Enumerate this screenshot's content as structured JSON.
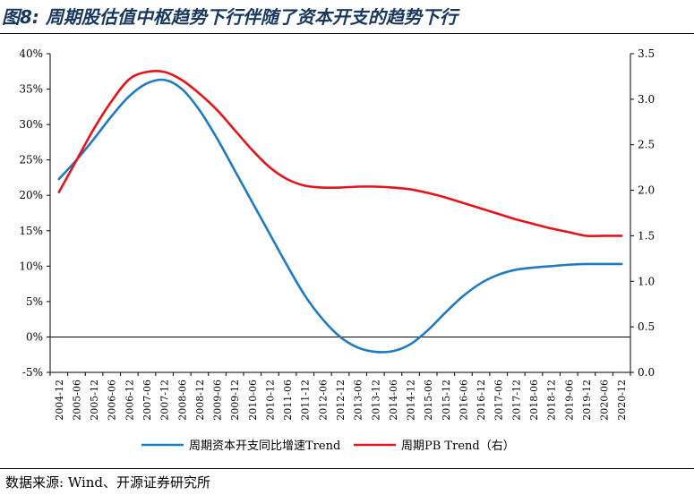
{
  "title": "图8:  周期股估值中枢趋势下行伴随了资本开支的趋势下行",
  "source": "数据来源:  Wind、开源证券研究所",
  "colors": {
    "title": "#17375e",
    "capex_series": "#1f7bc1",
    "pb_series": "#e3141c",
    "axis": "#000000"
  },
  "chart_data": {
    "type": "line",
    "title": "",
    "x": [
      "2004-12",
      "2005-06",
      "2005-12",
      "2006-06",
      "2006-12",
      "2007-06",
      "2007-12",
      "2008-06",
      "2008-12",
      "2009-06",
      "2009-12",
      "2010-06",
      "2010-12",
      "2011-06",
      "2011-12",
      "2012-06",
      "2012-12",
      "2013-06",
      "2013-12",
      "2014-06",
      "2014-12",
      "2015-06",
      "2015-12",
      "2016-06",
      "2016-12",
      "2017-06",
      "2017-12",
      "2018-06",
      "2018-12",
      "2019-06",
      "2019-12",
      "2020-06",
      "2020-12"
    ],
    "y_left": {
      "ylim": [
        -5,
        40
      ],
      "ticks": [
        -5,
        0,
        5,
        10,
        15,
        20,
        25,
        30,
        35,
        40
      ],
      "tick_labels": [
        "-5%",
        "0%",
        "5%",
        "10%",
        "15%",
        "20%",
        "25%",
        "30%",
        "35%",
        "40%"
      ]
    },
    "y_right": {
      "ylim": [
        0.0,
        3.5
      ],
      "ticks": [
        0.0,
        0.5,
        1.0,
        1.5,
        2.0,
        2.5,
        3.0,
        3.5
      ],
      "tick_labels": [
        "0.0",
        "0.5",
        "1.0",
        "1.5",
        "2.0",
        "2.5",
        "3.0",
        "3.5"
      ]
    },
    "series": [
      {
        "name": "周期资本开支同比增速Trend",
        "axis": "left",
        "color": "#1f7bc1",
        "values": [
          22.3,
          25.0,
          28.0,
          31.2,
          34.0,
          35.8,
          36.3,
          35.0,
          32.0,
          28.0,
          23.5,
          19.0,
          14.5,
          10.0,
          5.8,
          2.5,
          0.0,
          -1.5,
          -2.1,
          -2.0,
          -1.0,
          1.0,
          3.5,
          5.8,
          7.6,
          8.8,
          9.5,
          9.8,
          10.0,
          10.2,
          10.3,
          10.3,
          10.3
        ]
      },
      {
        "name": "周期PB Trend（右）",
        "axis": "right",
        "color": "#e3141c",
        "values": [
          1.98,
          2.33,
          2.68,
          2.98,
          3.22,
          3.3,
          3.3,
          3.21,
          3.06,
          2.88,
          2.66,
          2.44,
          2.25,
          2.12,
          2.05,
          2.03,
          2.03,
          2.04,
          2.04,
          2.03,
          2.01,
          1.97,
          1.92,
          1.86,
          1.8,
          1.74,
          1.68,
          1.63,
          1.58,
          1.54,
          1.5,
          1.5,
          1.5
        ]
      }
    ],
    "legend": "bottom"
  }
}
